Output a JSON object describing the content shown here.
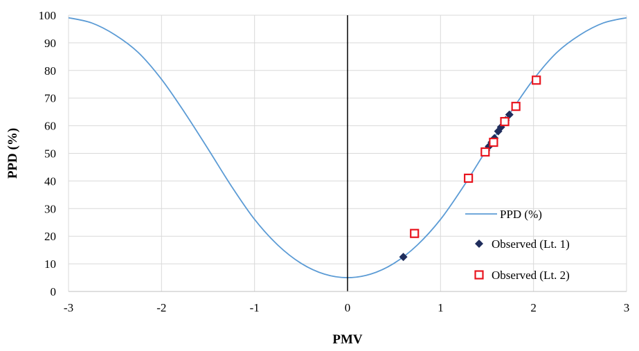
{
  "chart_data": {
    "type": "scatter",
    "xlabel": "PMV",
    "ylabel": "PPD (%)",
    "xlim": [
      -3,
      3
    ],
    "ylim": [
      0,
      100
    ],
    "x_ticks": [
      -3,
      -2,
      -1,
      0,
      1,
      2,
      3
    ],
    "y_ticks": [
      0,
      10,
      20,
      30,
      40,
      50,
      60,
      70,
      80,
      90,
      100
    ],
    "grid": true,
    "legend": "bottom-right",
    "series": [
      {
        "name": "PPD (%)",
        "kind": "line",
        "color": "#5b9bd5",
        "x": [
          -3.0,
          -2.75,
          -2.5,
          -2.25,
          -2.0,
          -1.75,
          -1.5,
          -1.25,
          -1.0,
          -0.75,
          -0.5,
          -0.25,
          0.0,
          0.25,
          0.5,
          0.75,
          1.0,
          1.25,
          1.5,
          1.75,
          2.0,
          2.25,
          2.5,
          2.75,
          3.0
        ],
        "y": [
          99.1,
          97.2,
          92.9,
          86.5,
          76.8,
          64.7,
          51.6,
          38.2,
          26.1,
          16.8,
          10.2,
          6.3,
          5.0,
          6.3,
          10.2,
          16.8,
          26.1,
          38.2,
          51.6,
          64.7,
          76.8,
          86.5,
          92.9,
          97.2,
          99.1
        ]
      },
      {
        "name": "Observed (Lt. 1)",
        "kind": "points",
        "marker": "diamond",
        "color": "#1f2d5c",
        "x": [
          0.6,
          1.49,
          1.52,
          1.55,
          1.58,
          1.62,
          1.65,
          1.7,
          1.74
        ],
        "y": [
          12.5,
          51.0,
          52.5,
          54.0,
          55.5,
          58.0,
          59.5,
          62.0,
          64.0
        ]
      },
      {
        "name": "Observed (Lt. 2)",
        "kind": "points",
        "marker": "square",
        "color": "#e8141e",
        "x": [
          0.72,
          1.3,
          1.48,
          1.57,
          1.69,
          1.81,
          2.03
        ],
        "y": [
          21.0,
          41.0,
          50.5,
          54.0,
          61.5,
          67.0,
          76.5
        ]
      }
    ]
  }
}
